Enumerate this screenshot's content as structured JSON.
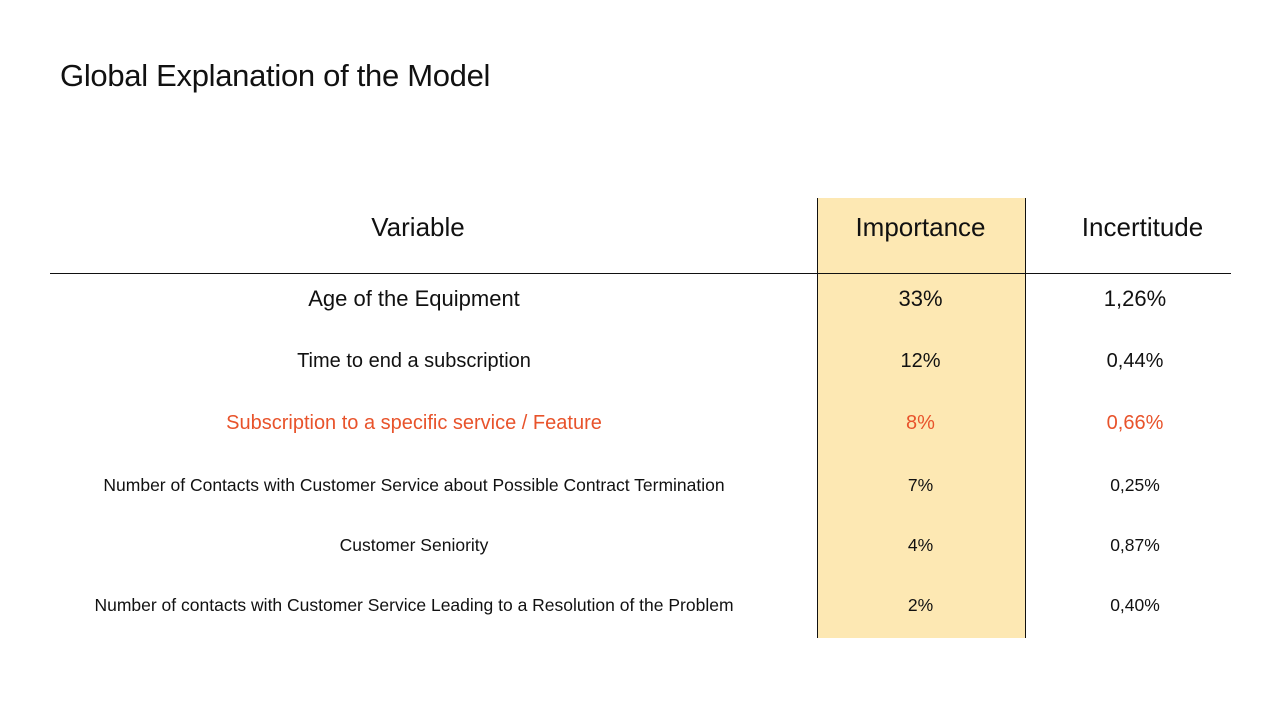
{
  "slide": {
    "title": "Global Explanation of the Model"
  },
  "table": {
    "headers": {
      "variable": "Variable",
      "importance": "Importance",
      "incertitude": "Incertitude"
    },
    "rows": [
      {
        "variable": "Age of the Equipment",
        "importance": "33%",
        "incertitude": "1,26%"
      },
      {
        "variable": "Time to end a subscription",
        "importance": "12%",
        "incertitude": "0,44%"
      },
      {
        "variable": "Subscription to a specific service / Feature",
        "importance": "8%",
        "incertitude": "0,66%"
      },
      {
        "variable": "Number of Contacts with Customer Service about Possible Contract Termination",
        "importance": "7%",
        "incertitude": "0,25%"
      },
      {
        "variable": "Customer Seniority",
        "importance": "4%",
        "incertitude": "0,87%"
      },
      {
        "variable": "Number of contacts with Customer Service Leading to a Resolution of the Problem",
        "importance": "2%",
        "incertitude": "0,40%"
      }
    ]
  },
  "colors": {
    "highlight_column": "#fde8b3",
    "accent_row_text": "#e8532b",
    "text": "#111111",
    "background": "#ffffff"
  }
}
